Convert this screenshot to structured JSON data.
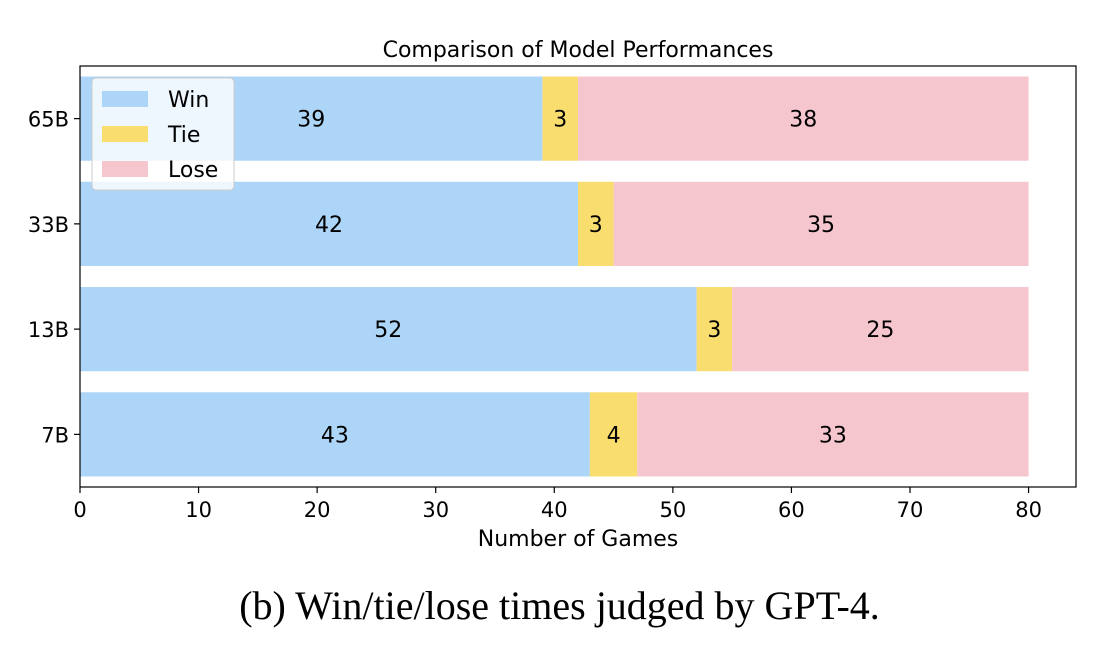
{
  "chart_data": {
    "type": "bar",
    "orientation": "horizontal",
    "stacked": true,
    "title": "Comparison of Model Performances",
    "xlabel": "Number of Games",
    "ylabel": "",
    "categories": [
      "65B",
      "33B",
      "13B",
      "7B"
    ],
    "series": [
      {
        "name": "Win",
        "values": [
          39,
          42,
          52,
          43
        ],
        "color": "#ADD5F7"
      },
      {
        "name": "Tie",
        "values": [
          3,
          3,
          3,
          4
        ],
        "color": "#F9DE6F"
      },
      {
        "name": "Lose",
        "values": [
          38,
          35,
          25,
          33
        ],
        "color": "#F6C6CF"
      }
    ],
    "xlim": [
      0,
      84
    ],
    "xticks": [
      0,
      10,
      20,
      30,
      40,
      50,
      60,
      70,
      80
    ],
    "legend_position": "top-left",
    "grid": false
  },
  "caption": "(b) Win/tie/lose times judged by GPT-4."
}
